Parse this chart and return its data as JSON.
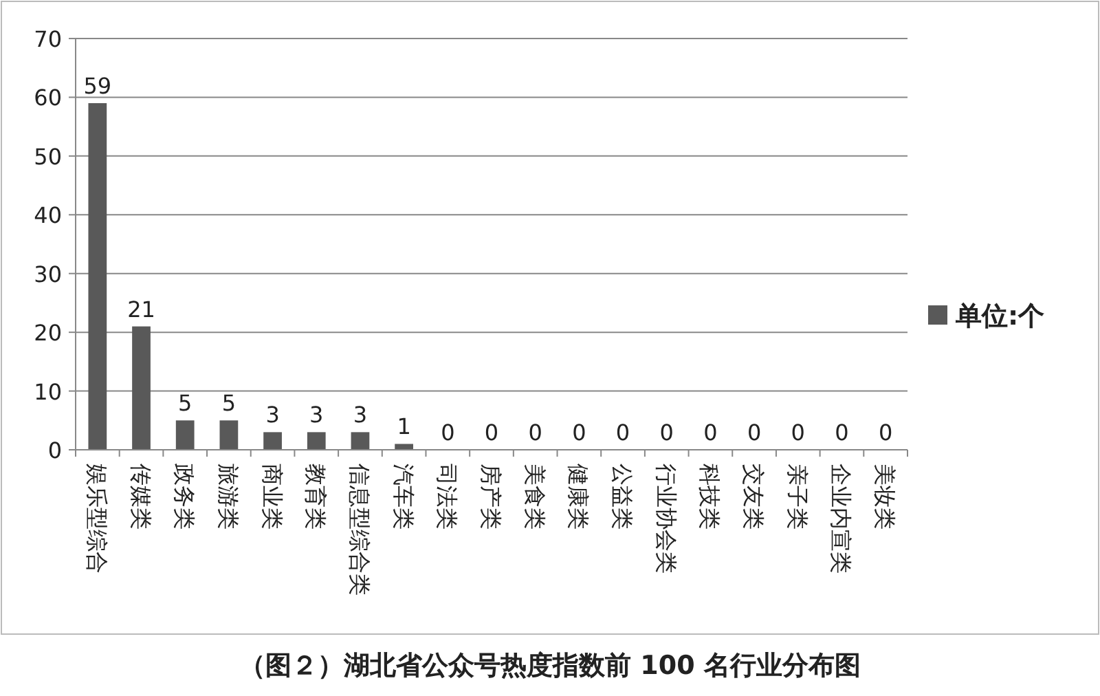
{
  "chart_data": {
    "type": "bar",
    "title": "（图２）湖北省公众号热度指数前 100 名行业分布图",
    "categories": [
      "娱乐型综合",
      "传媒类",
      "政务类",
      "旅游类",
      "商业类",
      "教育类",
      "信息型综合类",
      "汽车类",
      "司法类",
      "房产类",
      "美食类",
      "健康类",
      "公益类",
      "行业协会类",
      "科技类",
      "交友类",
      "亲子类",
      "企业内宣类",
      "美妆类"
    ],
    "series": [
      {
        "name": "单位:个",
        "color": "#595959",
        "values": [
          59,
          21,
          5,
          5,
          3,
          3,
          3,
          1,
          0,
          0,
          0,
          0,
          0,
          0,
          0,
          0,
          0,
          0,
          0
        ]
      }
    ],
    "ylim": [
      0,
      70
    ],
    "yticks": [
      0,
      10,
      20,
      30,
      40,
      50,
      60,
      70
    ],
    "grid": "y",
    "legend": "right",
    "data_labels": true
  }
}
